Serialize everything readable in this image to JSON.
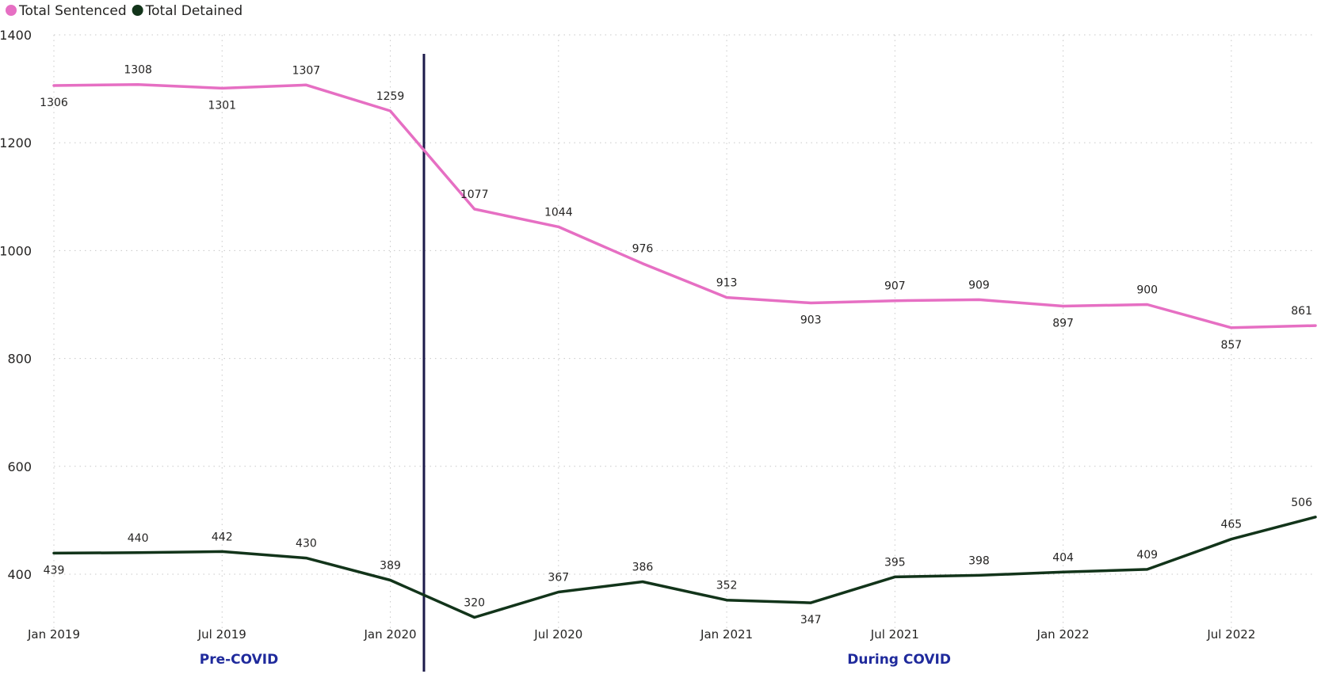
{
  "chart_data": {
    "type": "line",
    "x": [
      "Jan 2019",
      "Apr 2019",
      "Jul 2019",
      "Oct 2019",
      "Jan 2020",
      "Apr 2020",
      "Jul 2020",
      "Oct 2020",
      "Jan 2021",
      "Apr 2021",
      "Jul 2021",
      "Oct 2021",
      "Jan 2022",
      "Apr 2022",
      "Jul 2022",
      "Oct 2022"
    ],
    "x_tick_labels": [
      "Jan 2019",
      "Jul 2019",
      "Jan 2020",
      "Jul 2020",
      "Jan 2021",
      "Jul 2021",
      "Jan 2022",
      "Jul 2022"
    ],
    "x_tick_indices": [
      0,
      2,
      4,
      6,
      8,
      10,
      12,
      14
    ],
    "series": [
      {
        "name": "Total Sentenced",
        "color": "#e66fc3",
        "values": [
          1306,
          1308,
          1301,
          1307,
          1259,
          1077,
          1044,
          976,
          913,
          903,
          907,
          909,
          897,
          900,
          857,
          861
        ],
        "label_position": [
          "below",
          "above",
          "below",
          "above",
          "above",
          "above",
          "above",
          "above",
          "above",
          "below",
          "above",
          "above",
          "below",
          "above",
          "below",
          "above"
        ]
      },
      {
        "name": "Total Detained",
        "color": "#12341a",
        "values": [
          439,
          440,
          442,
          430,
          389,
          320,
          367,
          386,
          352,
          347,
          395,
          398,
          404,
          409,
          465,
          506
        ],
        "label_position": [
          "below",
          "above",
          "above",
          "above",
          "above",
          "above",
          "above",
          "above",
          "above",
          "below",
          "above",
          "above",
          "above",
          "above",
          "above",
          "above"
        ]
      }
    ],
    "ylim": [
      300,
      1400
    ],
    "y_ticks": [
      400,
      600,
      800,
      1000,
      1200,
      1400
    ],
    "grid": true,
    "legend": "top-left",
    "divider_color": "#1c1a4a",
    "regions": [
      "Pre-COVID",
      "During COVID"
    ]
  }
}
